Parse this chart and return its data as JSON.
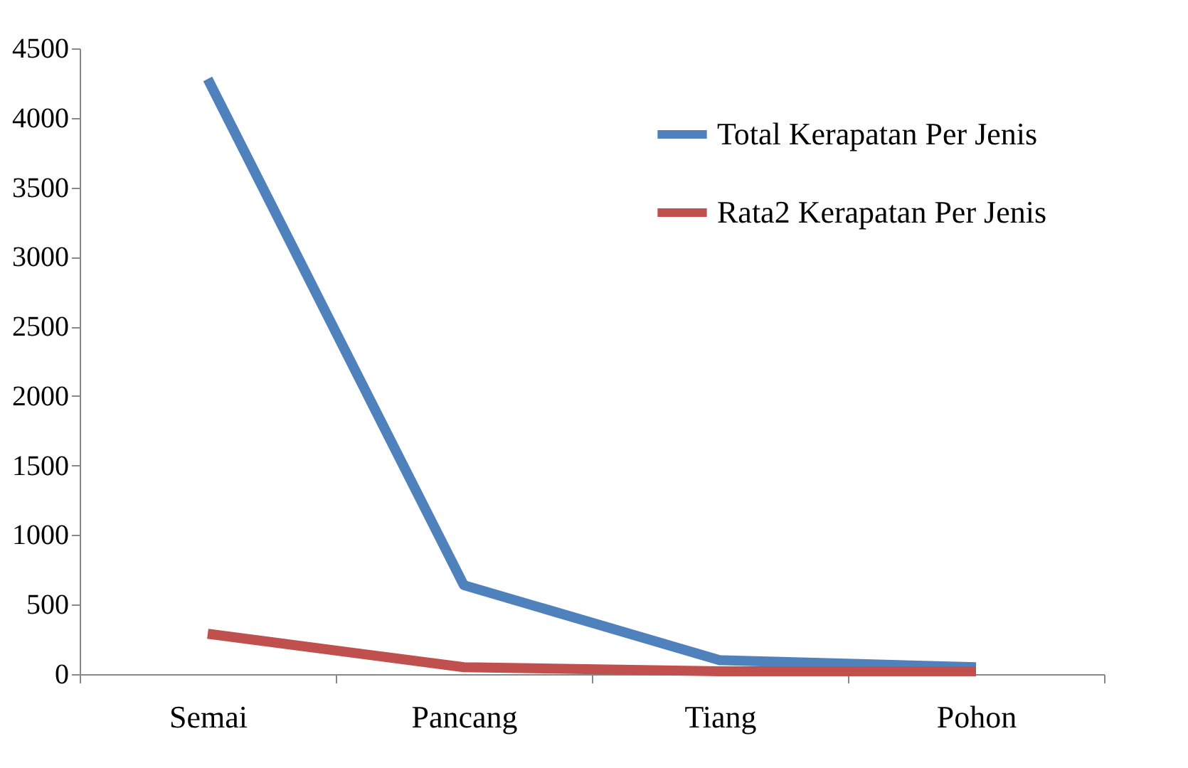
{
  "chart_data": {
    "type": "line",
    "categories": [
      "Semai",
      "Pancang",
      "Tiang",
      "Pohon"
    ],
    "series": [
      {
        "name": "Total Kerapatan Per Jenis",
        "color": "#4f81bd",
        "values": [
          4280,
          640,
          100,
          50
        ]
      },
      {
        "name": "Rata2 Kerapatan Per Jenis",
        "color": "#c0504d",
        "values": [
          290,
          50,
          20,
          20
        ]
      }
    ],
    "ylim": [
      0,
      4500
    ],
    "yticks": [
      0,
      500,
      1000,
      1500,
      2000,
      2500,
      3000,
      3500,
      4000,
      4500
    ],
    "grid": false,
    "legend": "top right",
    "marker": "none",
    "line_style": "solid"
  }
}
